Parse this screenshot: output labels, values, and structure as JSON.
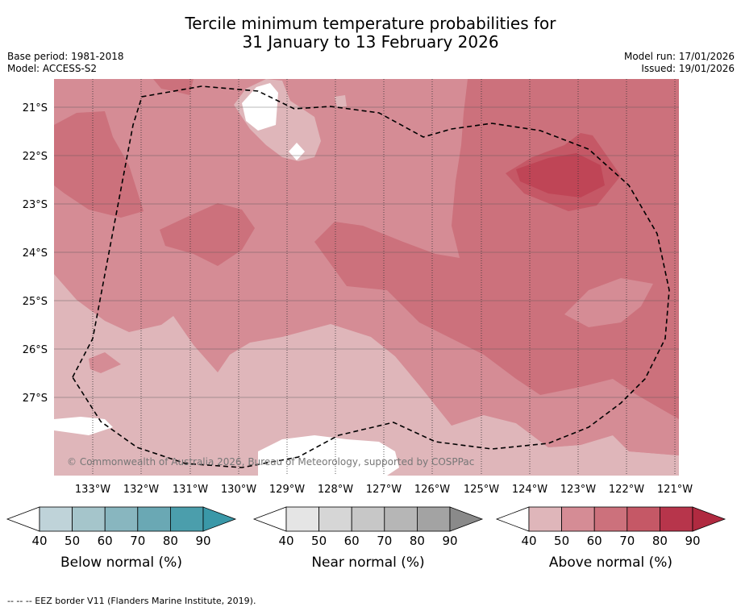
{
  "title_line1": "Tercile minimum temperature probabilities for",
  "title_line2": "31 January to 13 February 2026",
  "base_period": "Base period: 1981-2018",
  "model": "Model: ACCESS-S2",
  "model_run": "Model run: 17/01/2026",
  "issued": "Issued: 19/01/2026",
  "copyright": "© Commonwealth of Australia 2026, Bureau of Meteorology, supported by COSPPac",
  "lat_labels": [
    "21°S",
    "22°S",
    "23°S",
    "24°S",
    "25°S",
    "26°S",
    "27°S"
  ],
  "lon_labels": [
    "133°W",
    "132°W",
    "131°W",
    "130°W",
    "129°W",
    "128°W",
    "127°W",
    "126°W",
    "125°W",
    "124°W",
    "123°W",
    "122°W",
    "121°W"
  ],
  "colorbars": [
    {
      "label": "Below normal (%)",
      "ticks": [
        "40",
        "50",
        "60",
        "70",
        "80",
        "90"
      ],
      "colors": [
        "#bfd3d9",
        "#a5c5cb",
        "#88b6bf",
        "#6aa8b4",
        "#4b9eac",
        "#3a98a8"
      ]
    },
    {
      "label": "Near normal (%)",
      "ticks": [
        "40",
        "50",
        "60",
        "70",
        "80",
        "90"
      ],
      "colors": [
        "#e5e5e5",
        "#d6d6d6",
        "#c7c7c7",
        "#b6b6b6",
        "#a3a3a3",
        "#8a8a8a"
      ]
    },
    {
      "label": "Above normal (%)",
      "ticks": [
        "40",
        "50",
        "60",
        "70",
        "80",
        "90"
      ],
      "colors": [
        "#dfb6ba",
        "#d58c95",
        "#cc717c",
        "#c55866",
        "#b7354b",
        "#b02a40"
      ]
    }
  ],
  "footer": "--  --  -- EEZ border V11 (Flanders Marine Institute, 2019)."
}
